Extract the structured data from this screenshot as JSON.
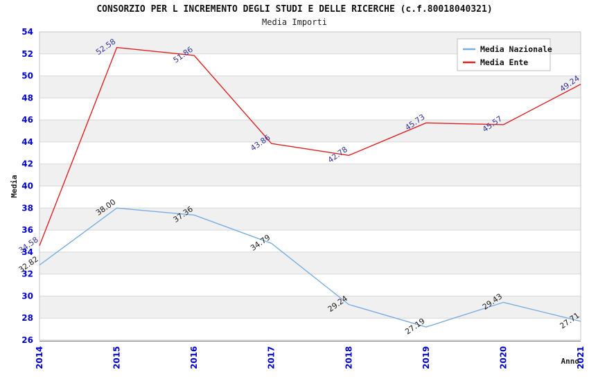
{
  "header": {
    "title": "CONSORZIO PER L INCREMENTO DEGLI STUDI E DELLE RICERCHE (c.f.80018040321)",
    "subtitle": "Media Importi"
  },
  "chart_data": {
    "type": "line",
    "title": "CONSORZIO PER L INCREMENTO DEGLI STUDI E DELLE RICERCHE (c.f.80018040321)",
    "subtitle": "Media Importi",
    "xlabel": "Anno",
    "ylabel": "Media",
    "categories": [
      "2014",
      "2015",
      "2016",
      "2017",
      "2018",
      "2019",
      "2020",
      "2021"
    ],
    "series": [
      {
        "name": "Media Nazionale",
        "color": "#79ade2",
        "label_color": "#1a1a1a",
        "values": [
          32.82,
          38.0,
          37.36,
          34.79,
          29.24,
          27.19,
          29.43,
          27.71
        ]
      },
      {
        "name": "Media Ente",
        "color": "#e02020",
        "label_color": "#333399",
        "values": [
          34.58,
          52.58,
          51.86,
          43.86,
          42.78,
          45.73,
          45.57,
          49.24
        ]
      }
    ],
    "ylim": [
      26,
      54
    ],
    "yticks": [
      26,
      28,
      30,
      32,
      34,
      36,
      38,
      40,
      42,
      44,
      46,
      48,
      50,
      52,
      54
    ],
    "grid": true,
    "legend_position": "top-right",
    "colors": {
      "tick_label": "#0000cc",
      "band_gray": "#f0f0f0",
      "band_white": "#ffffff",
      "gridline": "#d8d8d8",
      "plot_border": "#c6c6c6",
      "axis_line": "#808080",
      "legend_border": "#bbbbbb",
      "legend_bg": "#ffffff",
      "axis_title": "#1a1a1a"
    }
  }
}
